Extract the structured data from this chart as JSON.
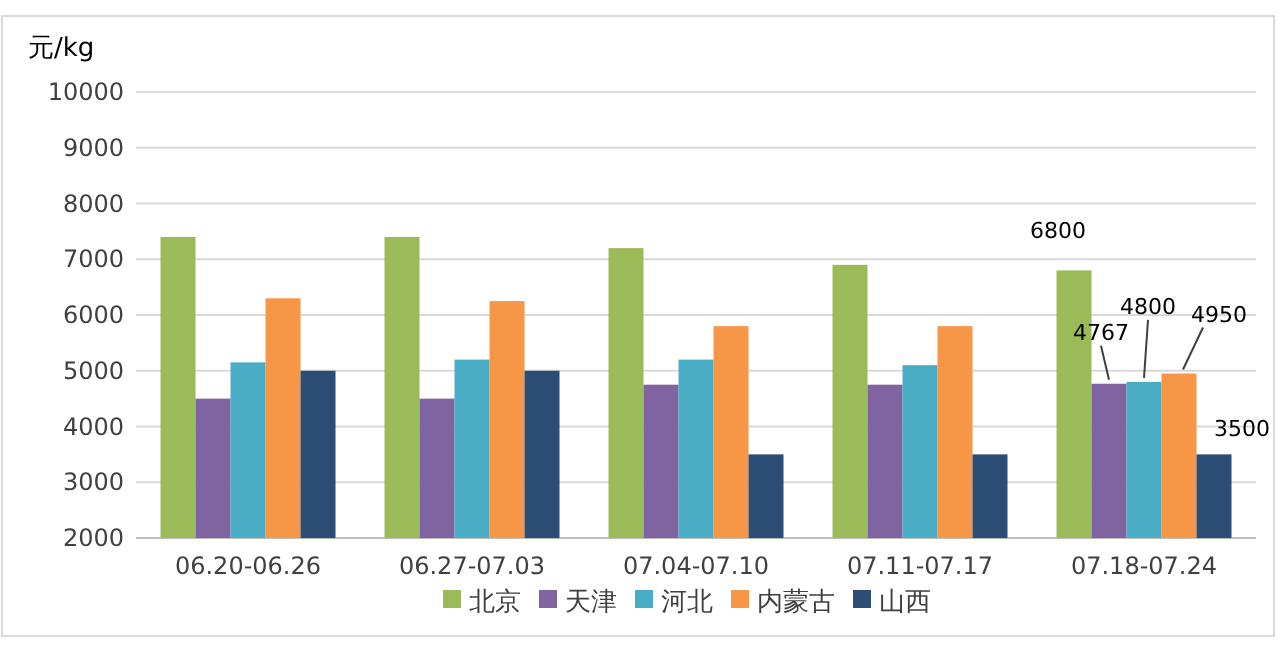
{
  "chart_data": {
    "type": "bar",
    "ylabel": "元/kg",
    "categories": [
      "06.20-06.26",
      "06.27-07.03",
      "07.04-07.10",
      "07.11-07.17",
      "07.18-07.24"
    ],
    "series": [
      {
        "name": "北京",
        "color": "#9bbb59",
        "values": [
          7400,
          7400,
          7200,
          6900,
          6800
        ],
        "value_labels": [
          null,
          null,
          null,
          null,
          "6800"
        ]
      },
      {
        "name": "天津",
        "color": "#8064a2",
        "values": [
          4500,
          4500,
          4750,
          4750,
          4767
        ],
        "value_labels": [
          null,
          null,
          null,
          null,
          "4767"
        ]
      },
      {
        "name": "河北",
        "color": "#4bacc6",
        "values": [
          5150,
          5200,
          5200,
          5100,
          4800
        ],
        "value_labels": [
          null,
          null,
          null,
          null,
          "4800"
        ]
      },
      {
        "name": "内蒙古",
        "color": "#f79646",
        "values": [
          6300,
          6250,
          5800,
          5800,
          4950
        ],
        "value_labels": [
          null,
          null,
          null,
          null,
          "4950"
        ]
      },
      {
        "name": "山西",
        "color": "#2c4d75",
        "values": [
          5000,
          5000,
          3500,
          3500,
          3500
        ],
        "value_labels": [
          null,
          null,
          null,
          null,
          "3500"
        ]
      }
    ],
    "ylim": [
      2000,
      10000
    ],
    "yticks": [
      2000,
      3000,
      4000,
      5000,
      6000,
      7000,
      8000,
      9000,
      10000
    ],
    "grid": "y",
    "legend": "bottom"
  }
}
